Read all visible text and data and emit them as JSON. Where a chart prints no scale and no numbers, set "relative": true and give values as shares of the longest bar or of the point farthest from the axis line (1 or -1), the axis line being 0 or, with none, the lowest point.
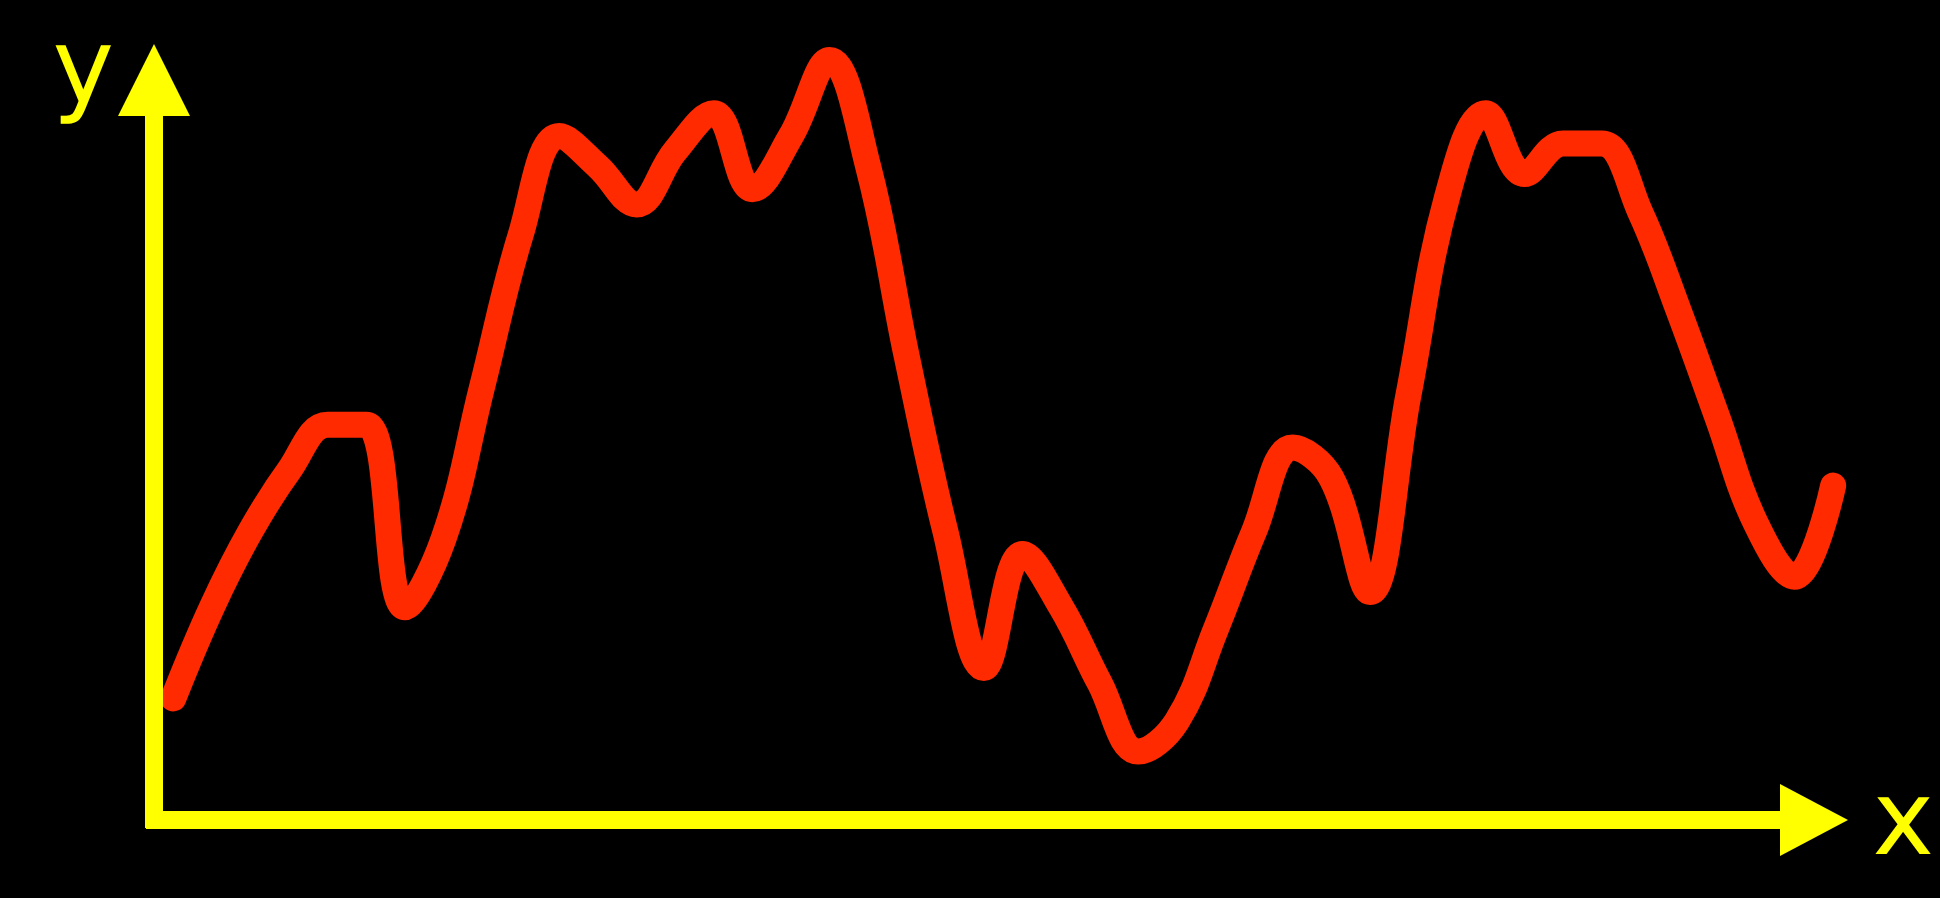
{
  "chart_data": {
    "type": "line",
    "relative": true,
    "xlabel": "x",
    "ylabel": "y",
    "grid": false,
    "line_style": "solid",
    "categories": [
      null,
      null,
      null,
      null,
      null,
      null,
      null,
      null,
      null,
      null,
      null,
      null,
      null,
      null,
      null,
      null,
      null,
      null,
      null,
      null,
      null,
      null,
      null,
      null,
      null,
      null,
      null,
      null,
      null,
      null,
      null,
      null,
      null,
      null,
      null,
      null,
      null,
      null,
      null,
      null,
      null,
      null,
      null,
      null
    ],
    "series": [
      {
        "color": "#ff2a00",
        "values": [
          0.16,
          0.28,
          0.38,
          0.46,
          0.52,
          0.52,
          0.28,
          0.37,
          0.57,
          0.77,
          0.9,
          0.86,
          0.81,
          0.88,
          0.93,
          0.83,
          0.9,
          1.0,
          0.86,
          0.61,
          0.38,
          0.2,
          0.35,
          0.28,
          0.18,
          0.09,
          0.13,
          0.25,
          0.38,
          0.49,
          0.45,
          0.3,
          0.56,
          0.82,
          0.93,
          0.85,
          0.89,
          0.89,
          0.8,
          0.67,
          0.53,
          0.39,
          0.32,
          0.44
        ]
      }
    ]
  }
}
